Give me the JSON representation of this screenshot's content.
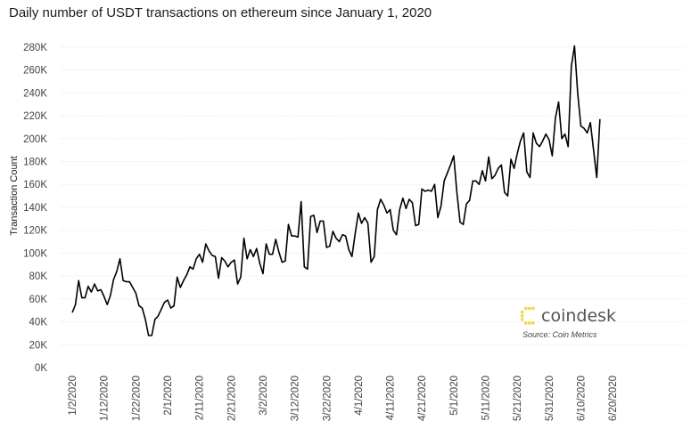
{
  "chart_data": {
    "type": "line",
    "title": "Daily number of USDT transactions on ethereum since January 1, 2020",
    "xlabel": "",
    "ylabel": "Transaction Count",
    "ylim": [
      0,
      290000
    ],
    "y_ticks": [
      0,
      20000,
      40000,
      60000,
      80000,
      100000,
      120000,
      140000,
      160000,
      180000,
      200000,
      220000,
      240000,
      260000,
      280000
    ],
    "y_tick_labels": [
      "0K",
      "20K",
      "40K",
      "60K",
      "80K",
      "100K",
      "120K",
      "140K",
      "160K",
      "180K",
      "200K",
      "220K",
      "240K",
      "260K",
      "280K"
    ],
    "x_ticks": [
      "1/2/2020",
      "1/12/2020",
      "1/22/2020",
      "2/1/2020",
      "2/11/2020",
      "2/21/2020",
      "3/2/2020",
      "3/12/2020",
      "3/22/2020",
      "4/1/2020",
      "4/11/2020",
      "4/21/2020",
      "5/1/2020",
      "5/11/2020",
      "5/21/2020",
      "5/31/2020",
      "6/10/2020",
      "6/20/2020"
    ],
    "x_start": "1/1/2020",
    "grid": "horizontal",
    "line_color": "#000000",
    "series": [
      {
        "values": [
          48000,
          55000,
          76000,
          61000,
          61000,
          71000,
          66000,
          73000,
          67000,
          68000,
          62000,
          55000,
          63000,
          77000,
          84000,
          95000,
          76000,
          75000,
          75000,
          70000,
          65000,
          54000,
          52000,
          42000,
          28000,
          28000,
          42000,
          45000,
          51000,
          57000,
          59000,
          52000,
          54000,
          79000,
          70000,
          76000,
          81000,
          88000,
          86000,
          95000,
          99000,
          92000,
          108000,
          102000,
          98000,
          97000,
          78000,
          96000,
          93000,
          88000,
          92000,
          94000,
          73000,
          79000,
          113000,
          95000,
          103000,
          97000,
          104000,
          91000,
          82000,
          108000,
          99000,
          99000,
          112000,
          101000,
          92000,
          93000,
          125000,
          115000,
          115000,
          114000,
          145000,
          88000,
          86000,
          132000,
          133000,
          118000,
          128000,
          128000,
          105000,
          106000,
          119000,
          113000,
          110000,
          116000,
          115000,
          103000,
          97000,
          117000,
          135000,
          126000,
          131000,
          126000,
          92000,
          97000,
          138000,
          147000,
          142000,
          135000,
          138000,
          120000,
          116000,
          138000,
          148000,
          139000,
          147000,
          144000,
          124000,
          125000,
          156000,
          154000,
          155000,
          154000,
          160000,
          131000,
          141000,
          163000,
          170000,
          177000,
          185000,
          153000,
          127000,
          125000,
          143000,
          146000,
          163000,
          163000,
          160000,
          172000,
          163000,
          184000,
          165000,
          168000,
          174000,
          177000,
          153000,
          150000,
          182000,
          174000,
          187000,
          198000,
          205000,
          171000,
          166000,
          205000,
          196000,
          193000,
          198000,
          204000,
          199000,
          185000,
          218000,
          232000,
          200000,
          204000,
          193000,
          263000,
          281000,
          240000,
          211000,
          209000,
          205000,
          214000,
          190000,
          166000,
          217000
        ]
      }
    ]
  },
  "watermark": {
    "brand": "coindesk",
    "brand_color": "#f5d33f",
    "source": "Source: Coin Metrics"
  }
}
